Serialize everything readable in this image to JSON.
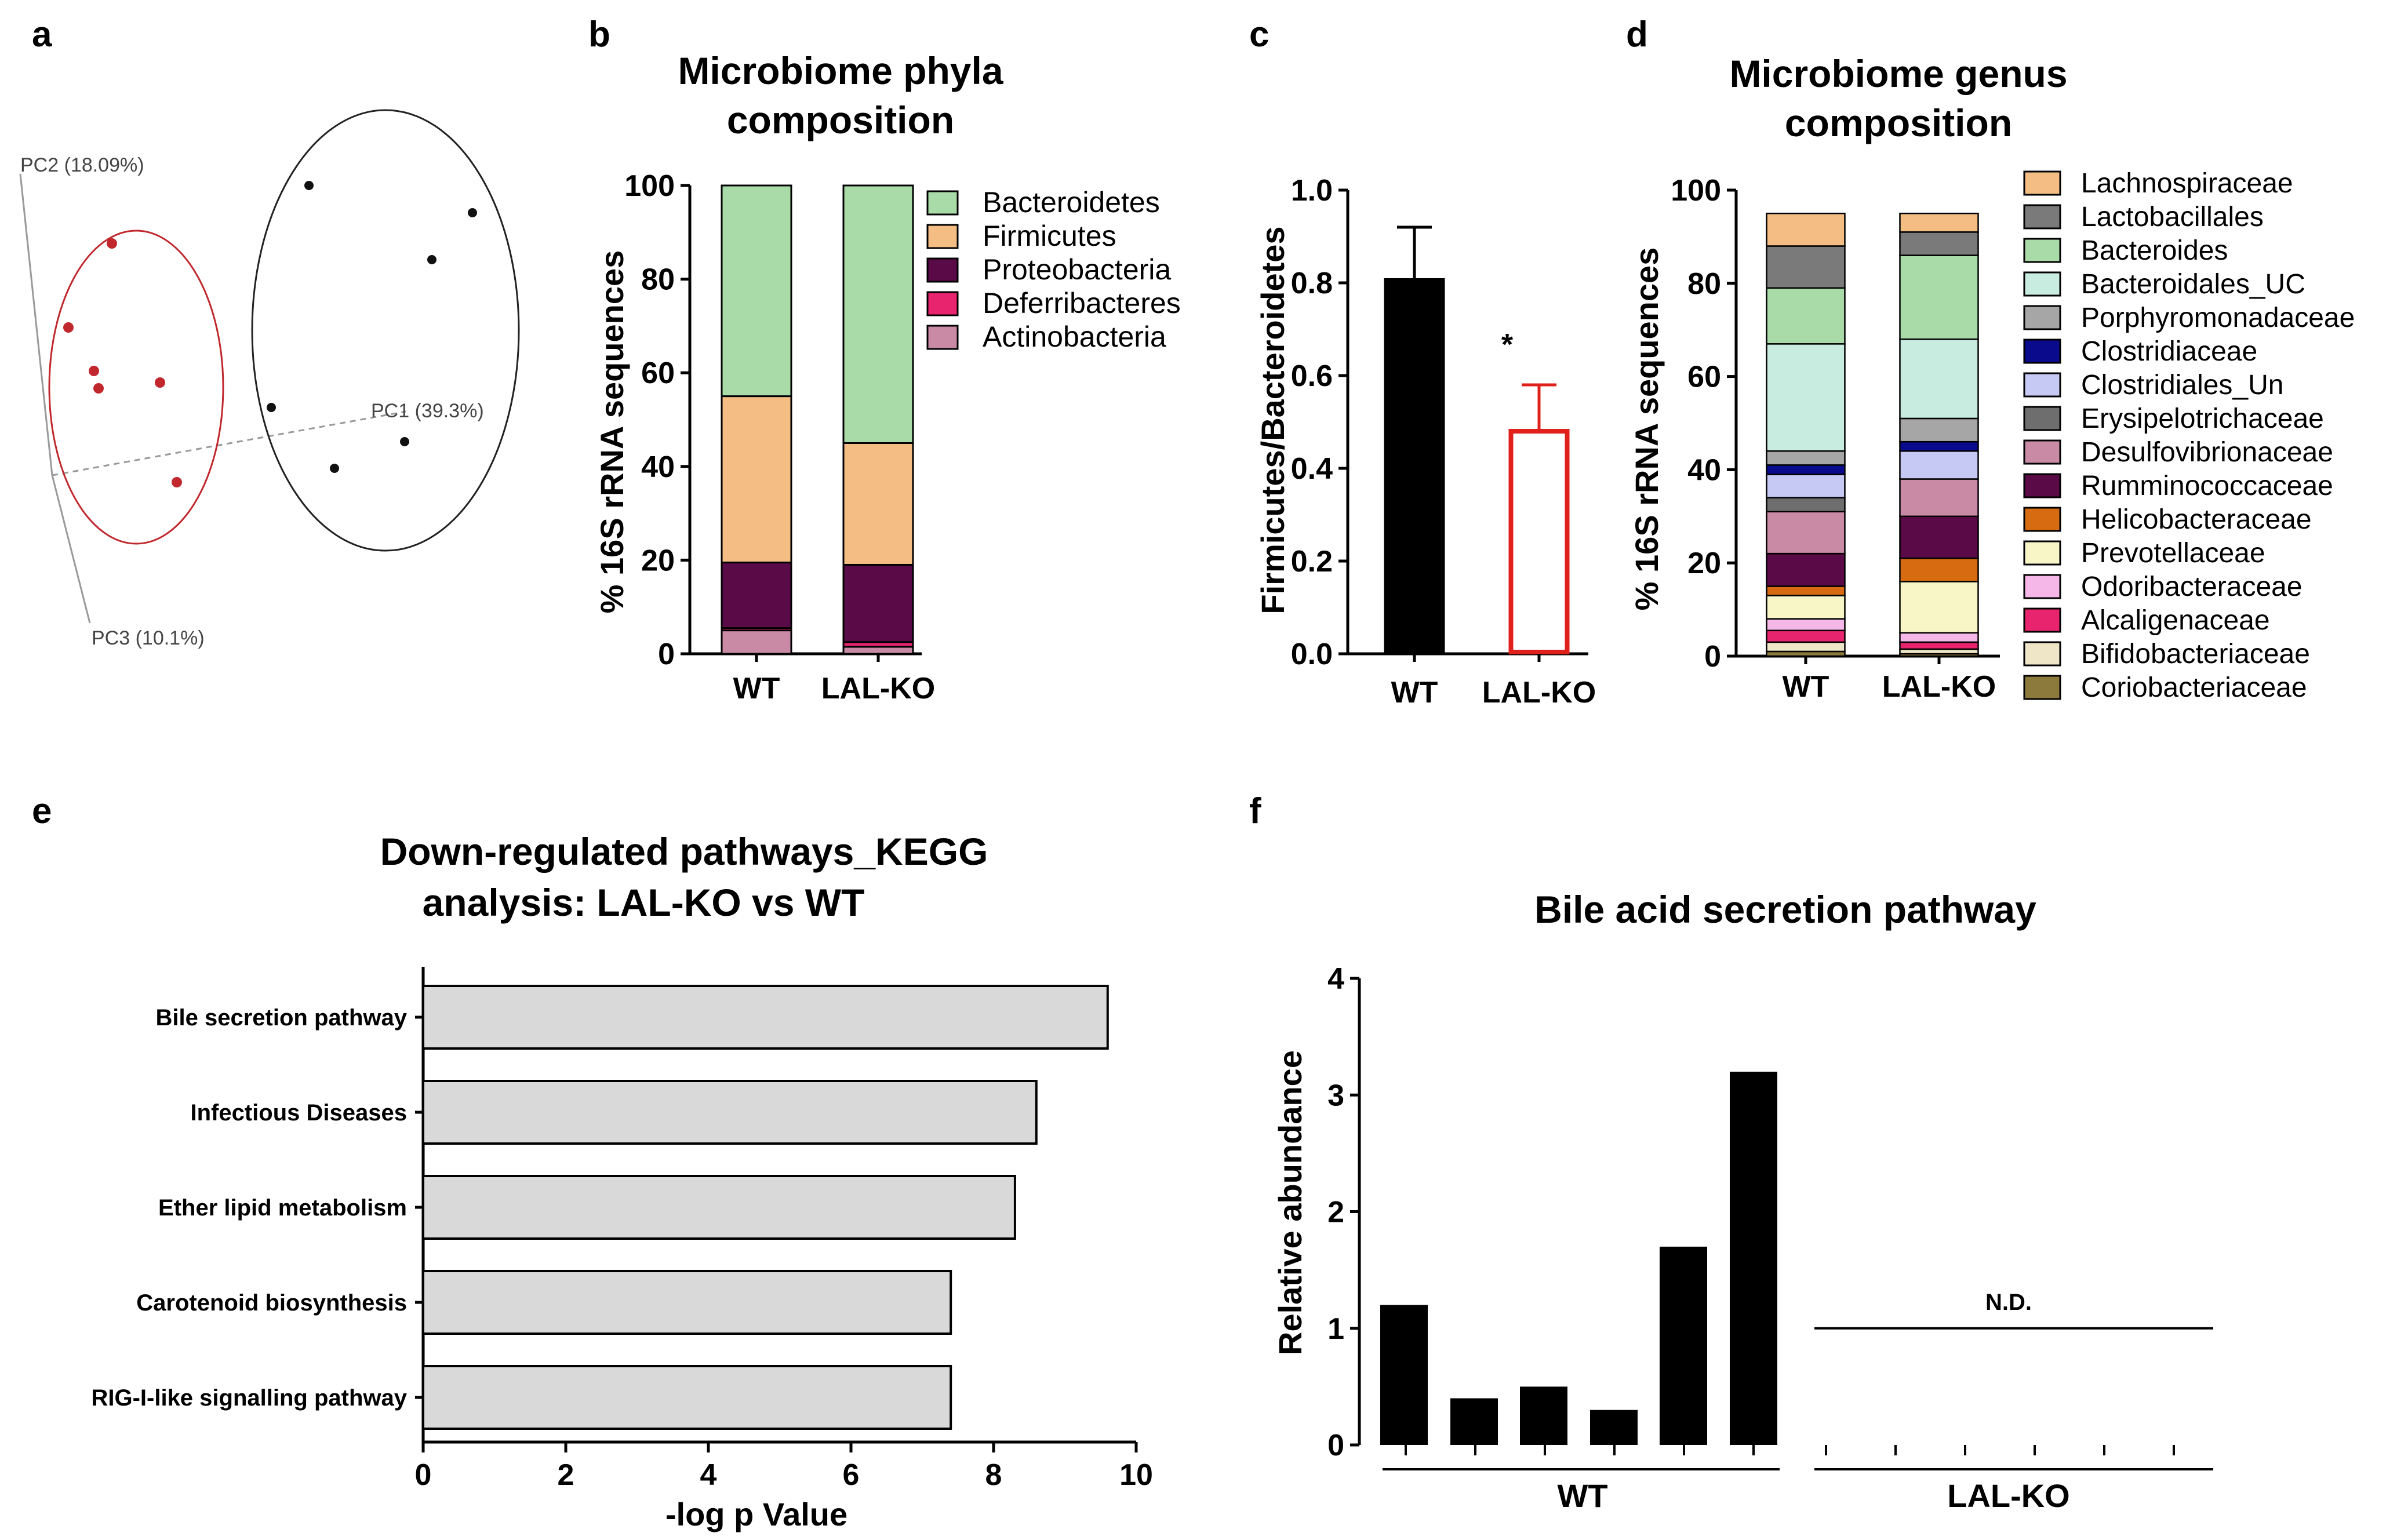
{
  "panel_labels": [
    "a",
    "b",
    "c",
    "d",
    "e",
    "f"
  ],
  "chart_data": [
    {
      "id": "a",
      "type": "scatter",
      "pc1": "PC1 (39.3%)",
      "pc2": "PC2 (18.09%)",
      "pc3": "PC3 (10.1%)",
      "red_group_color": "#c0282d",
      "black_group_color": "#111111"
    },
    {
      "id": "b",
      "type": "bar",
      "stacked": true,
      "title": [
        "Microbiome phyla",
        "composition"
      ],
      "ylabel": "% 16S rRNA sequences",
      "ylim": [
        0,
        100
      ],
      "yticks": [
        "0",
        "20",
        "40",
        "60",
        "80",
        "100"
      ],
      "categories": [
        "WT",
        "LAL-KO"
      ],
      "series": [
        {
          "name": "Actinobacteria",
          "color": "#c98aa6",
          "values": [
            5,
            1.5
          ]
        },
        {
          "name": "Deferribacteres",
          "color": "#e8246e",
          "values": [
            0.5,
            1
          ]
        },
        {
          "name": "Proteobacteria",
          "color": "#5a0a47",
          "values": [
            14,
            16.5
          ]
        },
        {
          "name": "Firmicutes",
          "color": "#f4bd83",
          "values": [
            35.5,
            26
          ]
        },
        {
          "name": "Bacteroidetes",
          "color": "#a9dba8",
          "values": [
            45,
            55
          ]
        }
      ]
    },
    {
      "id": "c",
      "type": "bar",
      "ylabel": "Firmicutes/Bacteroidetes",
      "ylim": [
        0,
        1.0
      ],
      "yticks": [
        "0.0",
        "0.2",
        "0.4",
        "0.6",
        "0.8",
        "1.0"
      ],
      "categories": [
        "WT",
        "LAL-KO"
      ],
      "values": [
        0.81,
        0.48
      ],
      "errors": [
        0.11,
        0.1
      ],
      "colors": [
        "#000000",
        "#e0201b"
      ],
      "annotation": "*"
    },
    {
      "id": "d",
      "type": "bar",
      "stacked": true,
      "title": [
        "Microbiome genus",
        "composition"
      ],
      "ylabel": "% 16S rRNA sequences",
      "ylim": [
        0,
        100
      ],
      "yticks": [
        "0",
        "20",
        "40",
        "60",
        "80",
        "100"
      ],
      "categories": [
        "WT",
        "LAL-KO"
      ],
      "series": [
        {
          "name": "Coriobacteriaceae",
          "color": "#8c7a3d",
          "values": [
            1,
            0.5
          ]
        },
        {
          "name": "Bifidobacteriaceae",
          "color": "#efe6c8",
          "values": [
            2,
            1
          ]
        },
        {
          "name": "Alcaligenaceae",
          "color": "#e8246e",
          "values": [
            2.5,
            1.5
          ]
        },
        {
          "name": "Odoribacteraceae",
          "color": "#f5b7e8",
          "values": [
            2.5,
            2
          ]
        },
        {
          "name": "Prevotellaceae",
          "color": "#f8f6c6",
          "values": [
            5,
            11
          ]
        },
        {
          "name": "Helicobacteraceae",
          "color": "#d66b12",
          "values": [
            2,
            5
          ]
        },
        {
          "name": "Rumminococcaceae",
          "color": "#5a0a47",
          "values": [
            7,
            9
          ]
        },
        {
          "name": "Desulfovibrionaceae",
          "color": "#c98aa6",
          "values": [
            9,
            8
          ]
        },
        {
          "name": "Erysipelotrichaceae",
          "color": "#6e6e6e",
          "values": [
            3,
            0
          ]
        },
        {
          "name": "Clostridiales_Un",
          "color": "#c7c9f5",
          "values": [
            5,
            6
          ]
        },
        {
          "name": "Clostridiaceae",
          "color": "#0a0a8c",
          "values": [
            2,
            2
          ]
        },
        {
          "name": "Porphyromonadaceae",
          "color": "#a6a6a6",
          "values": [
            3,
            5
          ]
        },
        {
          "name": "Bacteroidales_UC",
          "color": "#c8ecdf",
          "values": [
            23,
            17
          ]
        },
        {
          "name": "Bacteroides",
          "color": "#a9dba8",
          "values": [
            12,
            18
          ]
        },
        {
          "name": "Lactobacillales",
          "color": "#7a7a7a",
          "values": [
            9,
            5
          ]
        },
        {
          "name": "Lachnospiraceae",
          "color": "#f4bd83",
          "values": [
            7,
            4
          ]
        }
      ]
    },
    {
      "id": "e",
      "type": "bar",
      "orientation": "horizontal",
      "title": [
        "Down-regulated pathways_KEGG",
        "analysis: LAL-KO vs WT"
      ],
      "xlabel": "-log p Value",
      "xlim": [
        0,
        10
      ],
      "xticks": [
        "0",
        "2",
        "4",
        "6",
        "8",
        "10"
      ],
      "categories": [
        "Bile secretion pathway",
        "Infectious Diseases",
        "Ether lipid metabolism",
        "Carotenoid biosynthesis",
        "RIG-I-like signalling pathway"
      ],
      "values": [
        9.6,
        8.6,
        8.3,
        7.4,
        7.4
      ],
      "color": "#d9d9d9"
    },
    {
      "id": "f",
      "type": "bar",
      "title": "Bile acid secretion pathway",
      "ylabel": "Relative abundance",
      "ylim": [
        0,
        4
      ],
      "yticks": [
        "0",
        "1",
        "2",
        "3",
        "4"
      ],
      "groups": [
        {
          "name": "WT",
          "values": [
            1.2,
            0.4,
            0.5,
            0.3,
            1.7,
            3.2
          ]
        },
        {
          "name": "LAL-KO",
          "values": [],
          "annotation": "N.D."
        }
      ],
      "color": "#000000"
    }
  ]
}
